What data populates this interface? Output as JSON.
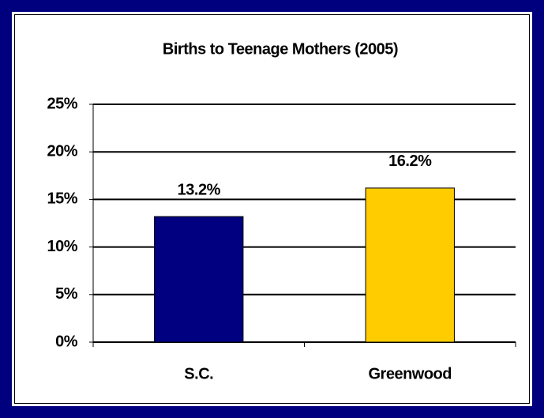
{
  "chart_data": {
    "type": "bar",
    "title": "Births to Teenage Mothers (2005)",
    "categories": [
      "S.C.",
      "Greenwood"
    ],
    "values": [
      13.2,
      16.2
    ],
    "value_labels": [
      "13.2%",
      "16.2%"
    ],
    "colors": [
      "#000080",
      "#ffcc00"
    ],
    "ylim": [
      0,
      25
    ],
    "yticks": [
      {
        "value": 0,
        "label": "0%"
      },
      {
        "value": 5,
        "label": "5%"
      },
      {
        "value": 10,
        "label": "10%"
      },
      {
        "value": 15,
        "label": "15%"
      },
      {
        "value": 20,
        "label": "20%"
      },
      {
        "value": 25,
        "label": "25%"
      }
    ],
    "grid": true
  }
}
